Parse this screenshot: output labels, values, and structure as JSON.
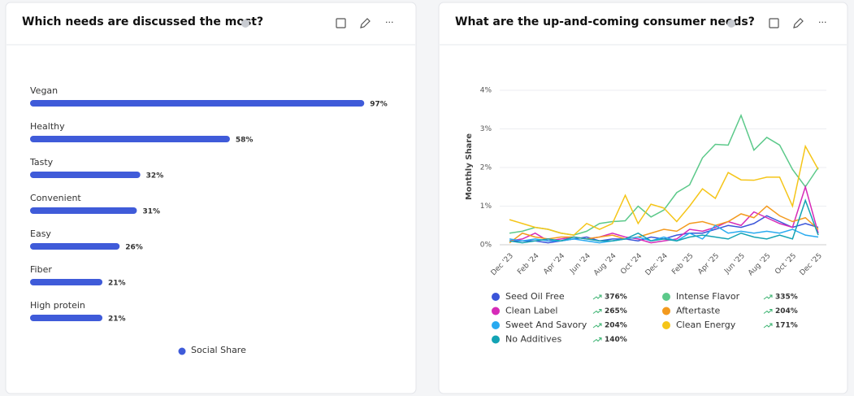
{
  "chart_data": [
    {
      "type": "bar",
      "title": "Which needs are discussed the most?",
      "categories": [
        "Vegan",
        "Healthy",
        "Tasty",
        "Convenient",
        "Easy",
        "Fiber",
        "High protein"
      ],
      "series": [
        {
          "name": "Social Share",
          "color": "#3f5bd9",
          "values": [
            97,
            58,
            32,
            31,
            26,
            21,
            21
          ],
          "value_labels": [
            "97%",
            "58%",
            "32%",
            "31%",
            "26%",
            "21%",
            "21%"
          ]
        }
      ],
      "xlim": [
        0,
        100
      ]
    },
    {
      "type": "line",
      "title": "What are the up-and-coming consumer needs?",
      "y_label": "Monthly Share",
      "categories": [
        "Dec '23",
        null,
        "Feb '24",
        null,
        "Apr '24",
        null,
        "Jun '24",
        null,
        "Aug '24",
        null,
        "Oct '24",
        null,
        "Dec '24",
        null,
        "Feb '25",
        null,
        "Apr '25",
        null,
        "Jun '25",
        null,
        "Aug '25",
        null,
        "Oct '25",
        null,
        "Dec '25"
      ],
      "ylim": [
        0,
        4
      ],
      "yticks": [
        {
          "value": 0,
          "label": "0%"
        },
        {
          "value": 1,
          "label": "1%"
        },
        {
          "value": 2,
          "label": "2%"
        },
        {
          "value": 3,
          "label": "3%"
        },
        {
          "value": 4,
          "label": "4%"
        }
      ],
      "grid": true,
      "series": [
        {
          "name": "Seed Oil Free",
          "color": "#3b55d9",
          "change_label": "376%",
          "values": [
            0.1,
            0.1,
            0.1,
            0.05,
            0.1,
            0.15,
            0.2,
            0.1,
            0.15,
            0.15,
            0.1,
            0.2,
            0.15,
            0.25,
            0.3,
            0.3,
            0.4,
            0.5,
            0.45,
            0.55,
            0.75,
            0.6,
            0.45,
            0.55,
            0.45
          ]
        },
        {
          "name": "Intense Flavor",
          "color": "#5cc98a",
          "change_label": "335%",
          "values": [
            0.3,
            0.35,
            0.45,
            0.4,
            0.3,
            0.25,
            0.35,
            0.55,
            0.6,
            0.62,
            1.0,
            0.72,
            0.9,
            1.35,
            1.55,
            2.25,
            2.6,
            2.58,
            3.35,
            2.45,
            2.78,
            2.58,
            1.95,
            1.5,
            2.0
          ]
        },
        {
          "name": "Clean Label",
          "color": "#d62bb8",
          "change_label": "265%",
          "values": [
            0.1,
            0.15,
            0.3,
            0.1,
            0.15,
            0.2,
            0.15,
            0.2,
            0.3,
            0.2,
            0.15,
            0.05,
            0.1,
            0.15,
            0.4,
            0.35,
            0.45,
            0.6,
            0.5,
            0.85,
            0.7,
            0.55,
            0.45,
            1.5,
            0.3
          ]
        },
        {
          "name": "Aftertaste",
          "color": "#f39a1e",
          "change_label": "204%",
          "values": [
            0.05,
            0.3,
            0.2,
            0.15,
            0.2,
            0.2,
            0.15,
            0.2,
            0.25,
            0.15,
            0.2,
            0.3,
            0.4,
            0.35,
            0.55,
            0.6,
            0.5,
            0.6,
            0.8,
            0.7,
            1.0,
            0.75,
            0.6,
            0.7,
            0.4
          ]
        },
        {
          "name": "Sweet And Savory",
          "color": "#29aaf0",
          "change_label": "204%",
          "values": [
            0.15,
            0.1,
            0.15,
            0.1,
            0.1,
            0.15,
            0.1,
            0.05,
            0.1,
            0.15,
            0.2,
            0.1,
            0.2,
            0.1,
            0.3,
            0.15,
            0.5,
            0.3,
            0.35,
            0.3,
            0.35,
            0.3,
            0.4,
            0.25,
            0.2
          ]
        },
        {
          "name": "Clean Energy",
          "color": "#f5c518",
          "change_label": "171%",
          "values": [
            0.65,
            0.55,
            0.45,
            0.4,
            0.3,
            0.25,
            0.55,
            0.4,
            0.55,
            1.28,
            0.55,
            1.05,
            0.95,
            0.6,
            1.0,
            1.45,
            1.2,
            1.87,
            1.68,
            1.67,
            1.75,
            1.75,
            1.0,
            2.55,
            1.95
          ]
        },
        {
          "name": "No Additives",
          "color": "#13a3b4",
          "change_label": "140%",
          "values": [
            0.1,
            0.05,
            0.1,
            0.15,
            0.1,
            0.2,
            0.15,
            0.1,
            0.1,
            0.15,
            0.3,
            0.1,
            0.15,
            0.1,
            0.2,
            0.25,
            0.2,
            0.15,
            0.3,
            0.2,
            0.15,
            0.25,
            0.15,
            1.15,
            0.25
          ]
        }
      ]
    }
  ]
}
